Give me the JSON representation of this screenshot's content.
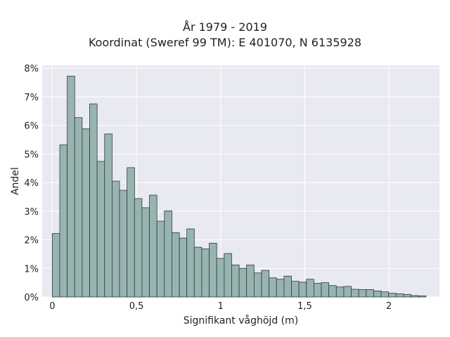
{
  "chart_data": {
    "type": "bar",
    "title": "År 1979 - 2019",
    "subtitle": "Koordinat (Sweref 99 TM): E 401070, N 6135928",
    "xlabel": "Signifikant våghöjd (m)",
    "ylabel": "Andel",
    "xlim": [
      -0.06,
      2.3
    ],
    "ylim": [
      0,
      0.081
    ],
    "xticks": [
      0,
      0.5,
      1,
      1.5,
      2
    ],
    "xtick_labels": [
      "0",
      "0,5",
      "1",
      "1,5",
      "2"
    ],
    "yticks": [
      0,
      0.01,
      0.02,
      0.03,
      0.04,
      0.05,
      0.06,
      0.07,
      0.08
    ],
    "ytick_labels": [
      "0%",
      "1%",
      "2%",
      "3%",
      "4%",
      "5%",
      "6%",
      "7%",
      "8%"
    ],
    "grid": true,
    "bin_start": 0,
    "bin_width": 0.0444,
    "values": [
      0.0222,
      0.0532,
      0.0772,
      0.0627,
      0.0588,
      0.0675,
      0.0474,
      0.057,
      0.0405,
      0.0373,
      0.0452,
      0.0344,
      0.0312,
      0.0356,
      0.0265,
      0.0301,
      0.0225,
      0.0206,
      0.0238,
      0.0174,
      0.0168,
      0.0188,
      0.0135,
      0.0152,
      0.0112,
      0.01,
      0.0112,
      0.0084,
      0.0093,
      0.0067,
      0.0062,
      0.0073,
      0.0055,
      0.0052,
      0.0062,
      0.0048,
      0.005,
      0.004,
      0.0035,
      0.0037,
      0.0027,
      0.0026,
      0.0026,
      0.0021,
      0.0018,
      0.0013,
      0.0011,
      0.0009,
      0.0005,
      0.0004
    ],
    "colors": {
      "bar_fill": "#98b4b1",
      "bar_edge": "#2f3b3a",
      "plot_bg": "#e9e9f1",
      "grid": "#ffffff"
    }
  }
}
